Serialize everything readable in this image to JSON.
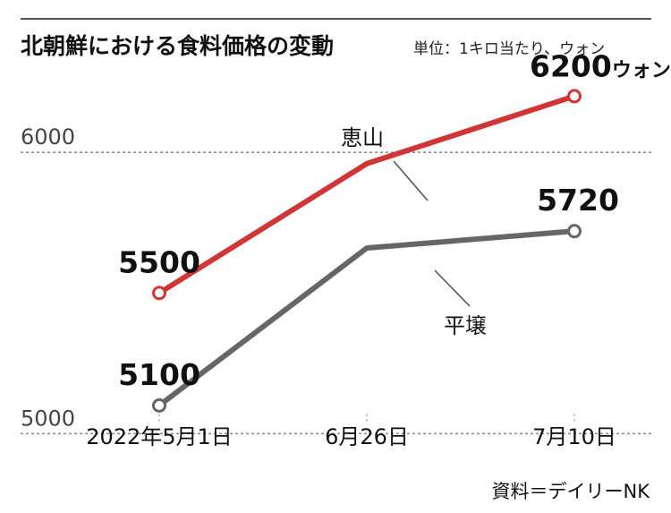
{
  "header": {
    "title": "北朝鮮における食料価格の変動",
    "unit": "単位：1キロ当たり、ウォン"
  },
  "source": "資料＝デイリーNK",
  "colors": {
    "series_hyesan": "#d23535",
    "series_pyongyang": "#666666",
    "grid": "#8c8c8c",
    "rule": "#555555"
  },
  "chart_data": {
    "type": "line",
    "x": [
      "2022年5月1日",
      "6月26日",
      "7月10日"
    ],
    "ylim": [
      4950,
      6300
    ],
    "yticks": [
      5000,
      6000
    ],
    "grid": "dashed horizontal at y ticks",
    "series": [
      {
        "name": "恵山",
        "values": [
          5500,
          5960,
          6200
        ]
      },
      {
        "name": "平壌",
        "values": [
          5100,
          5660,
          5720
        ]
      }
    ],
    "data_labels": [
      {
        "series": "恵山",
        "point": 0,
        "text": "5500",
        "suffix": ""
      },
      {
        "series": "恵山",
        "point": 2,
        "text": "6200",
        "suffix": "ウォン"
      },
      {
        "series": "平壌",
        "point": 0,
        "text": "5100",
        "suffix": ""
      },
      {
        "series": "平壌",
        "point": 2,
        "text": "5720",
        "suffix": ""
      }
    ]
  }
}
